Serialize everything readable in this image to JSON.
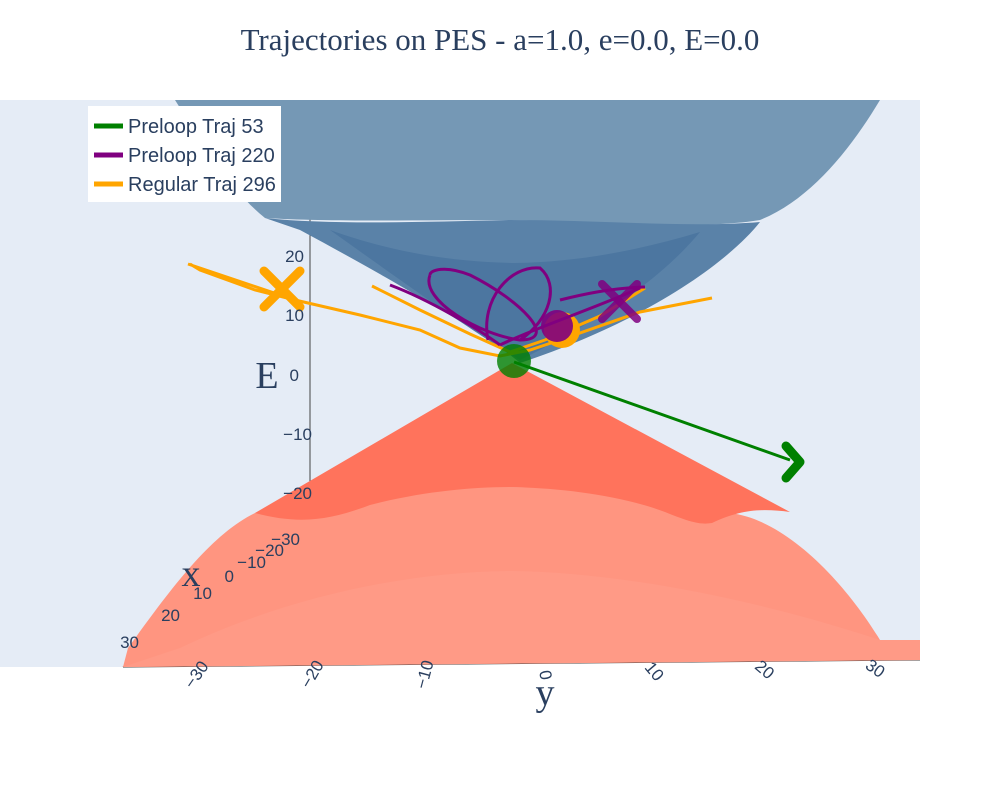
{
  "chart_data": {
    "type": "surface3d",
    "title": "Trajectories on PES - a=1.0, e=0.0, E=0.0",
    "axes": {
      "x": {
        "title": "x",
        "ticks": [
          "30",
          "20",
          "10",
          "0",
          "−10",
          "−20",
          "−30"
        ],
        "range": [
          -30,
          30
        ]
      },
      "y": {
        "title": "y",
        "ticks": [
          "−30",
          "−20",
          "−10",
          "0",
          "10",
          "20",
          "30"
        ],
        "range": [
          -35,
          35
        ]
      },
      "E": {
        "title": "E",
        "ticks": [
          "20",
          "10",
          "0",
          "−10",
          "−20"
        ],
        "range": [
          -25,
          25
        ]
      }
    },
    "surfaces": [
      {
        "name": "upper",
        "color": "#4c78a8"
      },
      {
        "name": "lower",
        "color": "#ff7f66"
      }
    ],
    "series": [
      {
        "name": "Preloop Traj 53",
        "color": "#008000"
      },
      {
        "name": "Preloop Traj 220",
        "color": "#800080"
      },
      {
        "name": "Regular Traj 296",
        "color": "#ffa500"
      }
    ],
    "legend": "top-left",
    "scene_background": "#e5ecf6"
  }
}
